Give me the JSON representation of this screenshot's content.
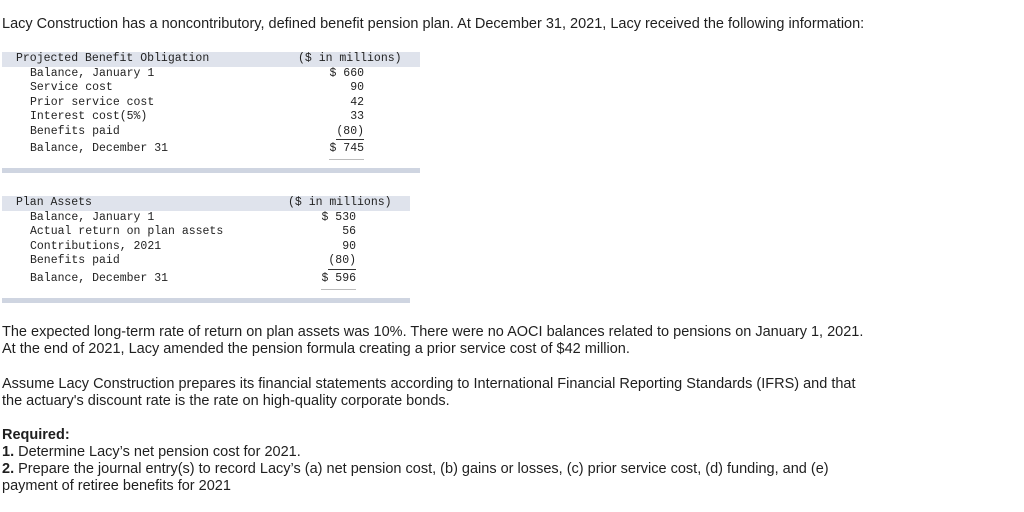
{
  "intro": "Lacy Construction has a noncontributory, defined benefit pension plan. At December 31, 2021, Lacy received the following information:",
  "pbo_table": {
    "title": "Projected Benefit Obligation",
    "unit": "($ in millions)",
    "rows": [
      {
        "label": "Balance, January 1",
        "value": "$ 660"
      },
      {
        "label": "Service cost",
        "value": "90"
      },
      {
        "label": "Prior service cost",
        "value": "42"
      },
      {
        "label": "Interest cost(5%)",
        "value": "33"
      },
      {
        "label": "Benefits paid",
        "value": "(80)"
      },
      {
        "label": "Balance, December 31",
        "value": "$ 745"
      }
    ]
  },
  "plan_assets_table": {
    "title": "Plan Assets",
    "unit": "($ in millions)",
    "rows": [
      {
        "label": "Balance, January 1",
        "value": "$ 530"
      },
      {
        "label": "Actual return on plan assets",
        "value": "56"
      },
      {
        "label": "Contributions, 2021",
        "value": "90"
      },
      {
        "label": "Benefits paid",
        "value": "(80)"
      },
      {
        "label": "Balance, December 31",
        "value": "$ 596"
      }
    ]
  },
  "para1": {
    "line1": "The expected long-term rate of return on plan assets was 10%. There were no AOCI balances related to pensions on January 1, 2021.",
    "line2": "At the end of 2021, Lacy amended the pension formula creating a prior service cost of $42 million."
  },
  "para2": {
    "line1": "Assume Lacy Construction prepares its financial statements according to International Financial Reporting Standards (IFRS) and that",
    "line2": "the actuary's discount rate is the rate on high-quality corporate bonds."
  },
  "required": {
    "heading": "Required:",
    "items": [
      {
        "num": "1.",
        "text": " Determine Lacy’s net pension cost for 2021."
      },
      {
        "num": "2.",
        "text": " Prepare the journal entry(s) to record Lacy’s (a) net pension cost, (b) gains or losses, (c) prior service cost, (d) funding, and (e)"
      }
    ],
    "continuation": "payment of retiree benefits for 2021"
  }
}
